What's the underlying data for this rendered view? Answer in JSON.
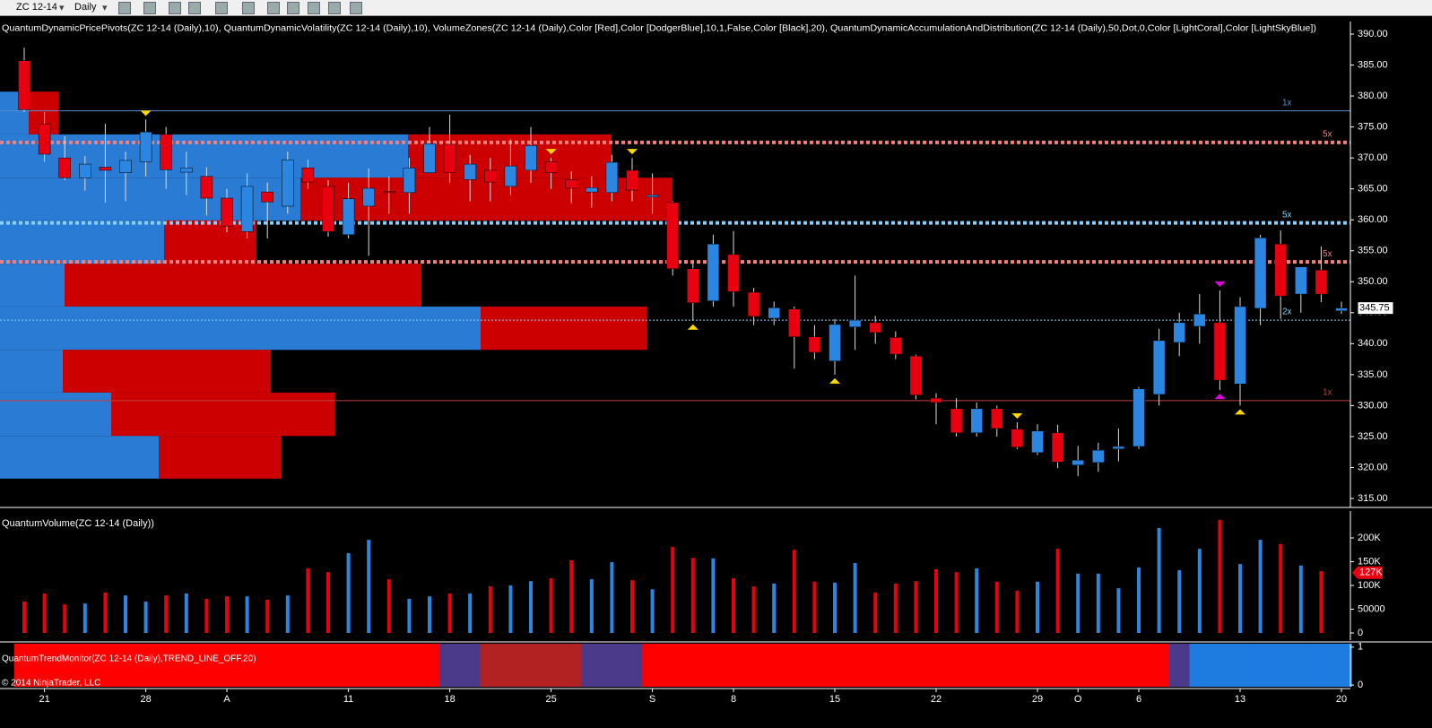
{
  "toolbar": {
    "symbol": "ZC 12-14",
    "interval": "Daily"
  },
  "copyright": "© 2014 NinjaTrader, LLC",
  "chart_data": [
    {
      "type": "candlestick",
      "title": "QuantumDynamicPricePivots(ZC 12-14 (Daily),10), QuantumDynamicVolatility(ZC 12-14 (Daily),10), VolumeZones(ZC 12-14 (Daily),Color [Red],Color [DodgerBlue],10,1,False,Color [Black],20), QuantumDynamicAccumulationAndDistribution(ZC 12-14 (Daily),50,Dot,0,Color [LightCoral],Color [LightSkyBlue])",
      "categories": [
        null,
        "21",
        null,
        null,
        null,
        null,
        "28",
        null,
        null,
        null,
        "A",
        null,
        null,
        null,
        null,
        null,
        "11",
        null,
        null,
        null,
        null,
        "18",
        null,
        null,
        null,
        null,
        "25",
        null,
        null,
        null,
        null,
        "S",
        null,
        null,
        null,
        "8",
        null,
        null,
        null,
        null,
        "15",
        null,
        null,
        null,
        null,
        "22",
        null,
        null,
        null,
        null,
        "29",
        null,
        "O",
        null,
        null,
        "6",
        null,
        null,
        null,
        null,
        "13",
        null,
        null,
        null,
        null,
        "20"
      ],
      "open": [
        385.7,
        375.5,
        370,
        366.8,
        368.5,
        367.6,
        369.4,
        373.8,
        367.7,
        367,
        363.5,
        358.1,
        364.5,
        362.2,
        368.4,
        365.4,
        357.6,
        362.2,
        364.6,
        364.4,
        367.6,
        372.2,
        366.5,
        368,
        365.4,
        368,
        369.4,
        366.5,
        364.5,
        364.4,
        368,
        363.7,
        362.8,
        352.1,
        346.9,
        354.4,
        348.3,
        344.1,
        345.6,
        341.1,
        337.2,
        342.7,
        343.4,
        341,
        338,
        331.2,
        329.5,
        325.6,
        329.5,
        326.2,
        322.4,
        325.6,
        320.4,
        320.8,
        323,
        323.4,
        331.8,
        340.2,
        342.8,
        343.4,
        333.5,
        345.7,
        356.1,
        348,
        351.9,
        345.3
      ],
      "high": [
        387.8,
        377.4,
        373.5,
        370.3,
        375.5,
        371,
        376.2,
        375,
        371,
        368.5,
        365,
        367.5,
        366,
        371,
        369.7,
        366.4,
        366,
        368.3,
        367,
        370,
        375,
        377,
        370.5,
        370,
        373,
        375,
        370,
        367.8,
        367,
        370.5,
        370,
        367.5,
        363,
        353,
        357.6,
        358.2,
        349,
        346.8,
        346,
        343,
        344,
        351,
        344.5,
        342,
        338.2,
        332,
        331.2,
        330.5,
        330,
        327.3,
        327,
        326.9,
        323.5,
        324,
        326.3,
        333,
        342.4,
        345,
        348,
        348.6,
        347.5,
        357.6,
        358.3,
        352.4,
        355.7,
        346.8
      ],
      "low": [
        377.4,
        369.4,
        366.4,
        364.7,
        362.8,
        363,
        367,
        365,
        364,
        360.7,
        358,
        357,
        357,
        361,
        365,
        357.3,
        357,
        354.2,
        361,
        361,
        368,
        366,
        363,
        363,
        364,
        366,
        365,
        362.7,
        362,
        363,
        363,
        361,
        351,
        343.7,
        346,
        346,
        343,
        343,
        336,
        337.5,
        335,
        339,
        340,
        337.5,
        331,
        327,
        325,
        325,
        325,
        323,
        322,
        319.9,
        318.6,
        319.3,
        321,
        323,
        330,
        338,
        340,
        332.5,
        330,
        343,
        344,
        345,
        346.7,
        344.8
      ],
      "close": [
        377.8,
        370.6,
        366.8,
        369,
        368,
        369.6,
        374.2,
        368.1,
        368.4,
        363.5,
        359,
        365.4,
        362.9,
        369.7,
        366.1,
        358.1,
        363.4,
        365.1,
        364.4,
        368.4,
        372.3,
        367.6,
        369,
        366.1,
        368.7,
        372,
        367.6,
        365.1,
        365.2,
        369.3,
        364.8,
        364,
        352.1,
        346.6,
        356.1,
        348.4,
        344.4,
        345.8,
        341.1,
        338.6,
        343.1,
        343.8,
        341.8,
        338.3,
        331.7,
        330.5,
        325.6,
        329.5,
        326.3,
        323.3,
        325.9,
        320.9,
        321.2,
        322.8,
        323.4,
        332.7,
        340.5,
        343.4,
        344.8,
        334.1,
        346,
        357.1,
        347.7,
        352.4,
        348,
        345.75
      ],
      "up_color": "#2a86e0",
      "down_color": "#e80010",
      "last_price": 345.75,
      "ylim": [
        313.55,
        392.03
      ],
      "yticks": [
        {
          "value": 315,
          "label": "315.00"
        },
        {
          "value": 320,
          "label": "320.00"
        },
        {
          "value": 325,
          "label": "325.00"
        },
        {
          "value": 330,
          "label": "330.00"
        },
        {
          "value": 335,
          "label": "335.00"
        },
        {
          "value": 340,
          "label": "340.00"
        },
        {
          "value": 345,
          "label": "345.00"
        },
        {
          "value": 350,
          "label": "350.00"
        },
        {
          "value": 355,
          "label": "355.00"
        },
        {
          "value": 360,
          "label": "360.00"
        },
        {
          "value": 365,
          "label": "365.00"
        },
        {
          "value": 370,
          "label": "370.00"
        },
        {
          "value": 375,
          "label": "375.00"
        },
        {
          "value": 380,
          "label": "380.00"
        },
        {
          "value": 385,
          "label": "385.00"
        },
        {
          "value": 390,
          "label": "390.00"
        }
      ],
      "levels": [
        {
          "value": 377.6,
          "label": "1x",
          "color": "#5a8fd0",
          "style": "solid"
        },
        {
          "value": 372.5,
          "label": "5x",
          "color": "#f08080",
          "style": "dotted"
        },
        {
          "value": 359.5,
          "label": "5x",
          "color": "#87cefa",
          "style": "dotted"
        },
        {
          "value": 353.2,
          "label": "5x",
          "color": "#f08080",
          "style": "dotted"
        },
        {
          "value": 343.8,
          "label": "2x",
          "color": "#87cefa",
          "style": "fine"
        },
        {
          "value": 330.8,
          "label": "1x",
          "color": "#c04040",
          "style": "solid"
        }
      ],
      "volume_zones": {
        "buy_color": "#2a7bd4",
        "sell_color": "#cc0000",
        "zones": [
          {
            "low": 373.8,
            "high": 380.7,
            "buy": 32,
            "sell": 33
          },
          {
            "low": 366.8,
            "high": 373.8,
            "buy": 455,
            "sell": 227
          },
          {
            "low": 359.9,
            "high": 366.8,
            "buy": 335,
            "sell": 415
          },
          {
            "low": 352.9,
            "high": 359.9,
            "buy": 183,
            "sell": 103
          },
          {
            "low": 346.0,
            "high": 352.9,
            "buy": 72,
            "sell": 398
          },
          {
            "low": 339.0,
            "high": 346.0,
            "buy": 536,
            "sell": 185
          },
          {
            "low": 332.1,
            "high": 339.0,
            "buy": 70,
            "sell": 232
          },
          {
            "low": 325.1,
            "high": 332.1,
            "buy": 124,
            "sell": 249
          },
          {
            "low": 318.2,
            "high": 325.1,
            "buy": 177,
            "sell": 137
          }
        ]
      },
      "pivots": [
        {
          "index": 6,
          "side": "above",
          "color": "#ffd700"
        },
        {
          "index": 26,
          "side": "above",
          "color": "#ffd700"
        },
        {
          "index": 30,
          "side": "above",
          "color": "#ffd700"
        },
        {
          "index": 49,
          "side": "above",
          "color": "#ffd700"
        },
        {
          "index": 33,
          "side": "below",
          "color": "#ffd700"
        },
        {
          "index": 40,
          "side": "below",
          "color": "#ffd700"
        },
        {
          "index": 60,
          "side": "below",
          "color": "#ffd700"
        },
        {
          "index": 59,
          "side": "above",
          "color": "#e000e0"
        },
        {
          "index": 59,
          "side": "below",
          "color": "#e000e0"
        }
      ]
    },
    {
      "type": "bar",
      "title": "QuantumVolume(ZC 12-14 (Daily))",
      "values": [
        66000,
        83000,
        60000,
        62000,
        85000,
        79000,
        66000,
        79000,
        83000,
        72000,
        77000,
        77000,
        70000,
        79000,
        136000,
        128000,
        168000,
        196000,
        113000,
        72000,
        77000,
        83000,
        83000,
        98000,
        100000,
        109000,
        115000,
        153000,
        113000,
        149000,
        111000,
        92000,
        181000,
        158000,
        157000,
        115000,
        98000,
        104000,
        175000,
        108000,
        106000,
        147000,
        85000,
        104000,
        109000,
        134000,
        128000,
        136000,
        108000,
        89000,
        108000,
        177000,
        125000,
        125000,
        94000,
        138000,
        221000,
        132000,
        177000,
        238000,
        145000,
        196000,
        187000,
        142000,
        130000,
        null
      ],
      "last_value": {
        "value": 127000,
        "label": "127K"
      },
      "ylim": [
        -15094,
        256604
      ],
      "yticks": [
        0,
        50000,
        {
          "value": 100000,
          "label": "100K"
        },
        {
          "value": 150000,
          "label": "150K"
        },
        {
          "value": 200000,
          "label": "200K"
        }
      ]
    },
    {
      "type": "trend",
      "title": "QuantumTrendMonitor(ZC 12-14 (Daily),TREND_LINE_OFF,20)",
      "colors": [
        "#ff0000",
        "#ff0000",
        "#ff0000",
        "#ff0000",
        "#ff0000",
        "#ff0000",
        "#ff0000",
        "#ff0000",
        "#ff0000",
        "#ff0000",
        "#ff0000",
        "#ff0000",
        "#ff0000",
        "#ff0000",
        "#ff0000",
        "#ff0000",
        "#ff0000",
        "#ff0000",
        "#ff0000",
        "#ff0000",
        "#ff0000",
        "#4b3a8a",
        "#4b3a8a",
        "#b22222",
        "#b22222",
        "#b22222",
        "#b22222",
        "#b22222",
        "#4b3a8a",
        "#4b3a8a",
        "#4b3a8a",
        "#ff0000",
        "#ff0000",
        "#ff0000",
        "#ff0000",
        "#ff0000",
        "#ff0000",
        "#ff0000",
        "#ff0000",
        "#ff0000",
        "#ff0000",
        "#ff0000",
        "#ff0000",
        "#ff0000",
        "#ff0000",
        "#ff0000",
        "#ff0000",
        "#ff0000",
        "#ff0000",
        "#ff0000",
        "#ff0000",
        "#ff0000",
        "#ff0000",
        "#ff0000",
        "#ff0000",
        "#ff0000",
        "#ff0000",
        "#4b3a8a",
        "#1e7be0",
        "#1e7be0",
        "#1e7be0",
        "#1e7be0",
        "#1e7be0",
        "#1e7be0",
        "#1e7be0",
        "#1e7be0"
      ],
      "ylim": [
        -0.045,
        1.09
      ],
      "yticks": [
        0,
        1
      ]
    }
  ]
}
